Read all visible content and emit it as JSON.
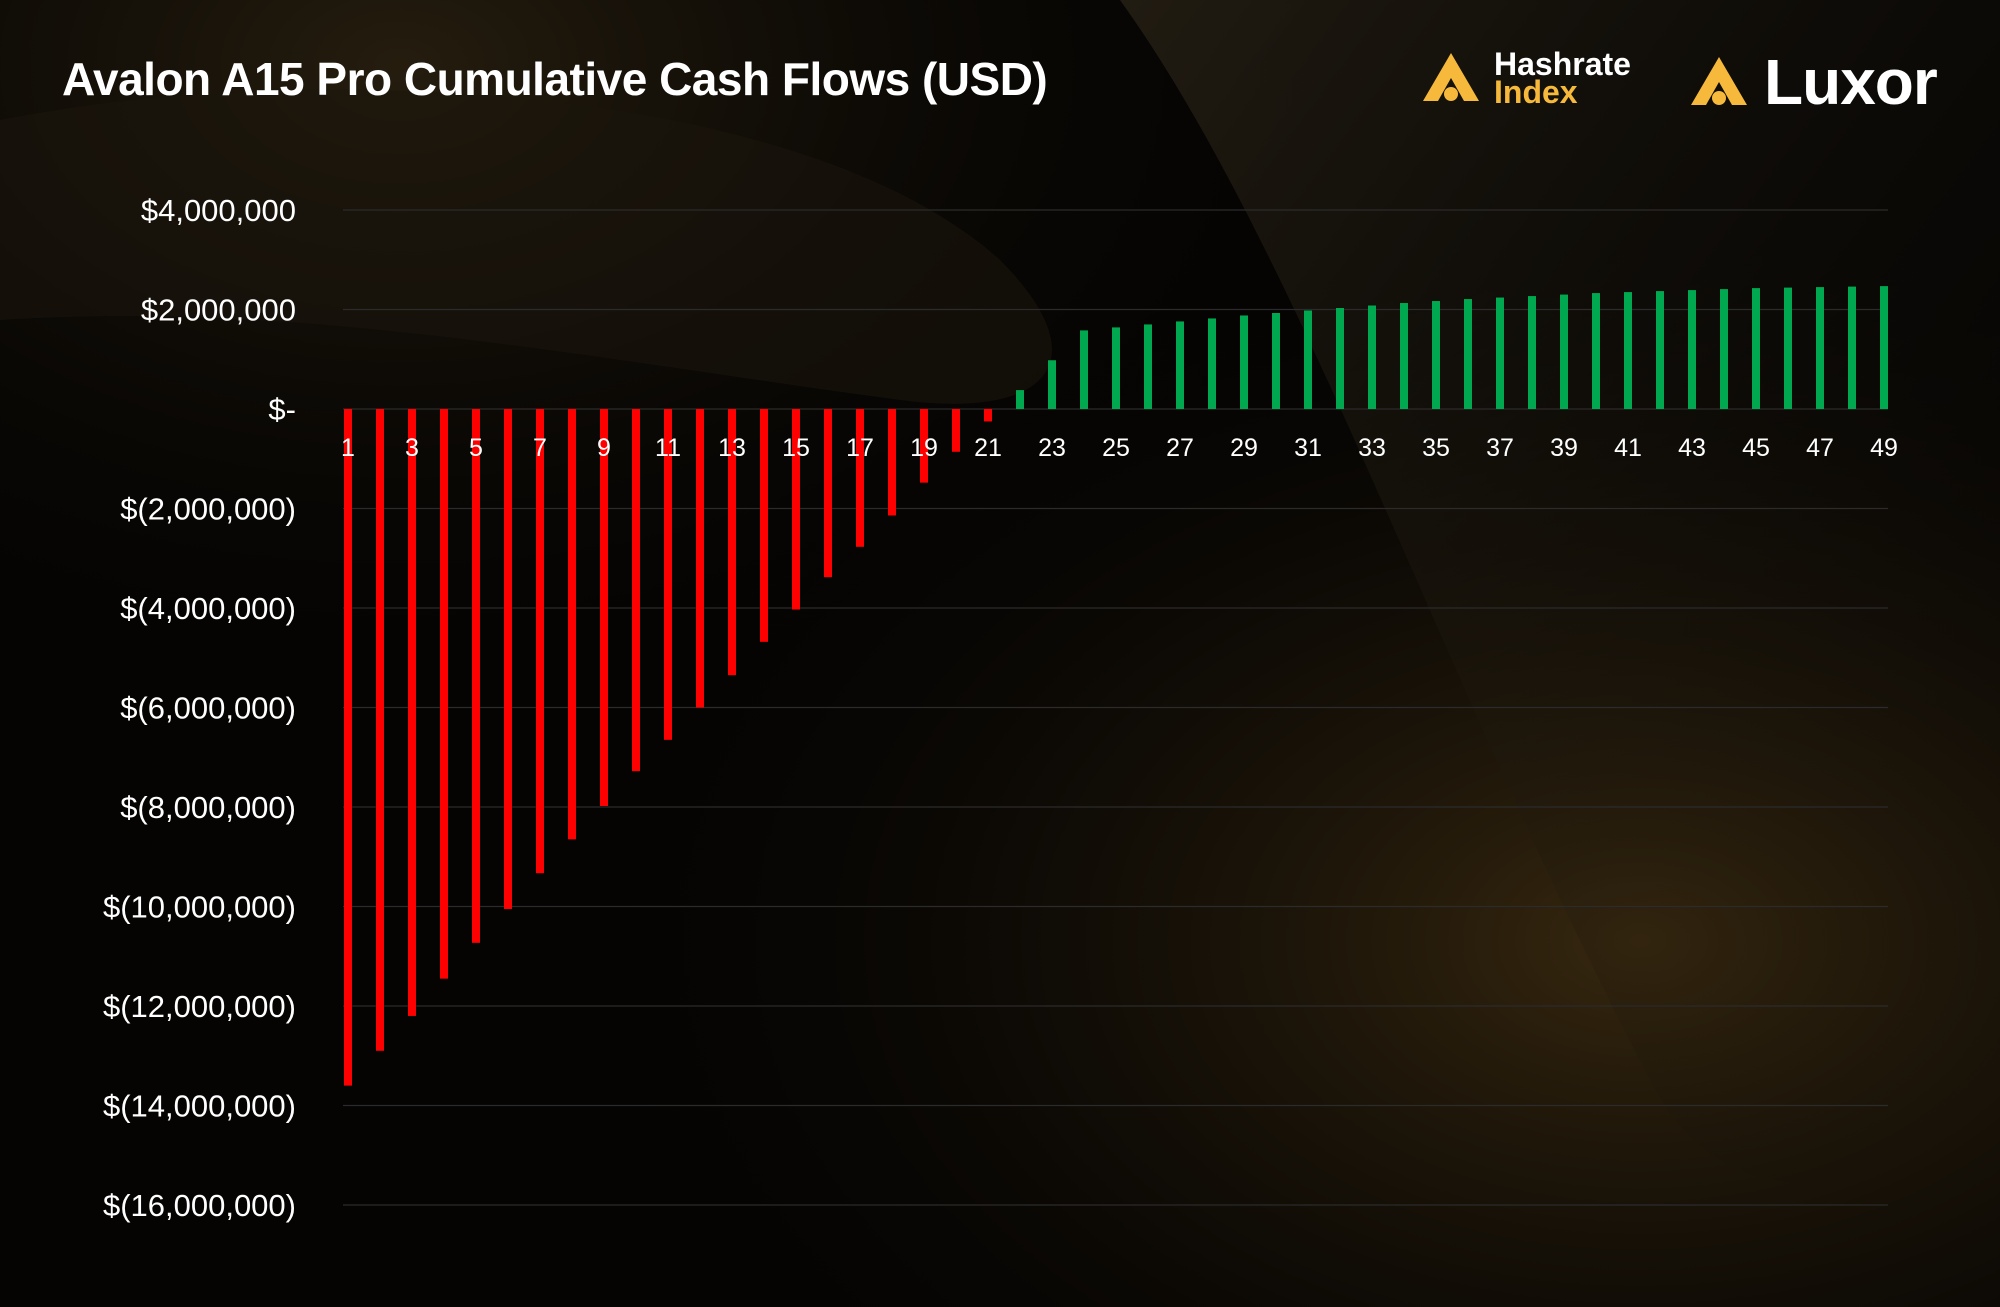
{
  "title": "Avalon A15 Pro Cumulative Cash Flows (USD)",
  "logos": {
    "hashrate_index": {
      "line1": "Hashrate",
      "line2": "Index",
      "icon": "hashrate-index-logo-icon"
    },
    "luxor": {
      "name": "Luxor",
      "icon": "luxor-logo-icon"
    }
  },
  "colors": {
    "negative": "#ff0000",
    "positive": "#00a94f",
    "accent": "#f6b93b",
    "grid": "#2b2b2b"
  },
  "chart_data": {
    "type": "bar",
    "title": "Avalon A15 Pro Cumulative Cash Flows (USD)",
    "xlabel": "",
    "ylabel": "",
    "ylim": [
      -16000000,
      4000000
    ],
    "grid": true,
    "yticks": [
      4000000,
      2000000,
      0,
      -2000000,
      -4000000,
      -6000000,
      -8000000,
      -10000000,
      -12000000,
      -14000000,
      -16000000
    ],
    "ytick_labels": [
      "$4,000,000",
      "$2,000,000",
      "$-",
      "$(2,000,000)",
      "$(4,000,000)",
      "$(6,000,000)",
      "$(8,000,000)",
      "$(10,000,000)",
      "$(12,000,000)",
      "$(14,000,000)",
      "$(16,000,000)"
    ],
    "categories": [
      "1",
      "2",
      "3",
      "4",
      "5",
      "6",
      "7",
      "8",
      "9",
      "10",
      "11",
      "12",
      "13",
      "14",
      "15",
      "16",
      "17",
      "18",
      "19",
      "20",
      "21",
      "22",
      "23",
      "24",
      "25",
      "26",
      "27",
      "28",
      "29",
      "30",
      "31",
      "32",
      "33",
      "34",
      "35",
      "36",
      "37",
      "38",
      "39",
      "40",
      "41",
      "42",
      "43",
      "44",
      "45",
      "46",
      "47",
      "48",
      "49"
    ],
    "xtick_labels": [
      "1",
      "3",
      "5",
      "7",
      "9",
      "11",
      "13",
      "15",
      "17",
      "19",
      "21",
      "23",
      "25",
      "27",
      "29",
      "31",
      "33",
      "35",
      "37",
      "39",
      "41",
      "43",
      "45",
      "47",
      "49"
    ],
    "values": [
      -13600000,
      -12900000,
      -12200000,
      -11450000,
      -10730000,
      -10050000,
      -9330000,
      -8650000,
      -7980000,
      -7280000,
      -6650000,
      -6000000,
      -5350000,
      -4680000,
      -4030000,
      -3380000,
      -2770000,
      -2140000,
      -1480000,
      -860000,
      -250000,
      380000,
      980000,
      1580000,
      1640000,
      1700000,
      1760000,
      1820000,
      1880000,
      1930000,
      1980000,
      2030000,
      2080000,
      2130000,
      2170000,
      2210000,
      2240000,
      2270000,
      2300000,
      2330000,
      2350000,
      2370000,
      2390000,
      2410000,
      2430000,
      2440000,
      2450000,
      2460000,
      2470000
    ]
  }
}
